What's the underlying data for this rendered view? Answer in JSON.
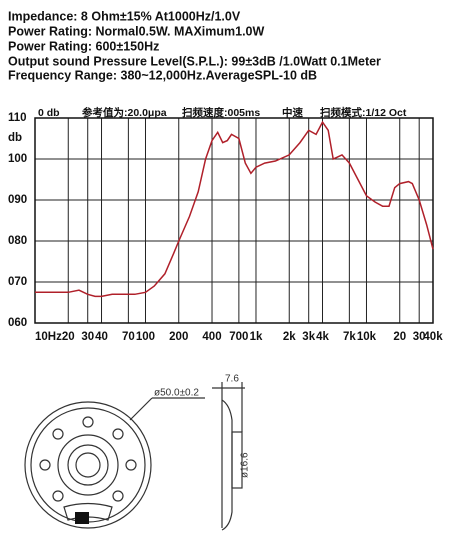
{
  "specs": [
    "Impedance: 8 Ohm±15% At1000Hz/1.0V",
    "Power Rating: Normal0.5W. MAXimum1.0W",
    "Power Rating: 600±150Hz",
    "Output sound Pressure Level(S.P.L.): 99±3dB /1.0Watt 0.1Meter",
    "Frequency Range: 380~12,000Hz.AverageSPL-10 dB"
  ],
  "chart_data": {
    "type": "line",
    "ylabel": "db",
    "annotations": [
      "0 db",
      "参考值为:20.0μpa",
      "扫频速度:005ms",
      "中速",
      "扫频模式:1/12 Oct"
    ],
    "x": [
      10,
      15,
      20,
      25,
      30,
      35,
      40,
      50,
      60,
      70,
      80,
      100,
      120,
      150,
      180,
      200,
      250,
      300,
      350,
      400,
      450,
      500,
      550,
      600,
      700,
      800,
      900,
      1000,
      1200,
      1500,
      2000,
      2500,
      3000,
      3500,
      4000,
      4500,
      5000,
      6000,
      7000,
      8000,
      10000,
      12000,
      14000,
      16000,
      18000,
      20000,
      24000,
      26000,
      30000,
      35000,
      40000
    ],
    "values": [
      67.5,
      67.5,
      67.5,
      68,
      67,
      66.5,
      66.5,
      67,
      67,
      67,
      67,
      67.5,
      69,
      72,
      77,
      80,
      86,
      92,
      100,
      104.5,
      106.5,
      104,
      104.5,
      106,
      105,
      99,
      96.5,
      98,
      99,
      99.5,
      101,
      104,
      107,
      106,
      109,
      107,
      100,
      101,
      99,
      96,
      91,
      89.5,
      88.5,
      88.5,
      93,
      94,
      94.5,
      94,
      90,
      84,
      78
    ],
    "color": "#b0202a",
    "xscale": "log",
    "grid": true,
    "xlim": [
      10,
      40000
    ],
    "ylim": [
      60,
      110
    ],
    "xticks": [
      {
        "value": 10,
        "label": "10Hz"
      },
      20,
      30,
      40,
      70,
      100,
      200,
      400,
      700,
      {
        "value": 1000,
        "label": "1k"
      },
      {
        "value": 2000,
        "label": "2k"
      },
      {
        "value": 3000,
        "label": "3k"
      },
      {
        "value": 4000,
        "label": "4k"
      },
      {
        "value": 7000,
        "label": "7k"
      },
      {
        "value": 10000,
        "label": "10k"
      },
      {
        "value": 20000,
        "label": "20"
      },
      {
        "value": 30000,
        "label": "30"
      },
      {
        "value": 40000,
        "label": "40k"
      }
    ],
    "yticks": [
      {
        "value": 60,
        "label": "060"
      },
      {
        "value": 70,
        "label": "070"
      },
      {
        "value": 80,
        "label": "080"
      },
      {
        "value": 90,
        "label": "090"
      },
      {
        "value": 100,
        "label": "100"
      },
      {
        "value": 110,
        "label": "110"
      }
    ]
  },
  "drawing": {
    "diameter": "ø50.0±0.2",
    "depth": "7.6",
    "magnet": "ø16.6"
  }
}
